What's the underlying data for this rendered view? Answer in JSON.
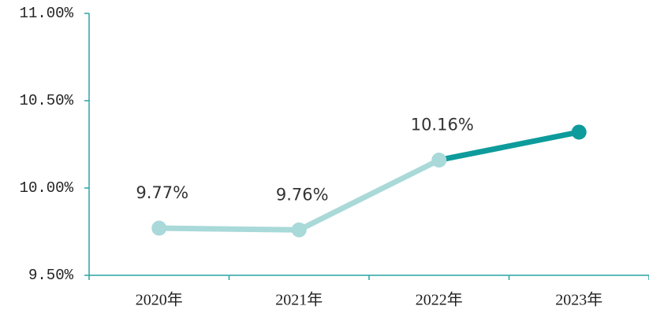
{
  "chart_data": {
    "type": "line",
    "categories": [
      "2020年",
      "2021年",
      "2022年",
      "2023年"
    ],
    "series": [
      {
        "color": "#a9d9d9",
        "highlight_color": "#0e9b9b",
        "values": [
          9.77,
          9.76,
          10.16,
          10.32
        ],
        "value_labels": [
          "9.77%",
          "9.76%",
          "10.16%",
          null
        ]
      }
    ],
    "ylim": [
      9.5,
      11
    ],
    "yticks": [
      {
        "value": 9.5,
        "label": "9.50%"
      },
      {
        "value": 10,
        "label": "10.00%"
      },
      {
        "value": 10.5,
        "label": "10.50%"
      },
      {
        "value": 11,
        "label": "11.00%"
      }
    ],
    "axis_color": "#2aa3a3",
    "grid": false
  }
}
